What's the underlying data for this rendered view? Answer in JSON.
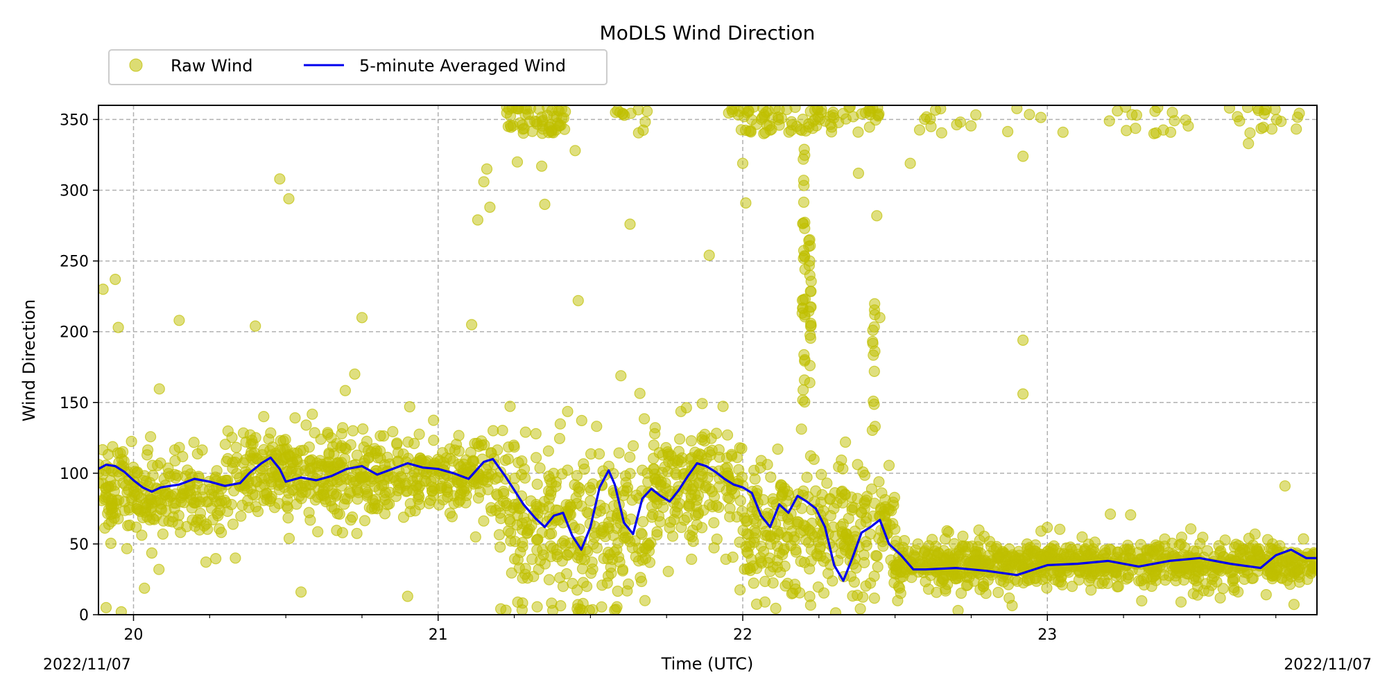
{
  "chart_data": {
    "type": "scatter",
    "title": "MoDLS Wind Direction",
    "xlabel": "Time (UTC)",
    "ylabel": "Wind Direction",
    "xlim": [
      19.885,
      23.885
    ],
    "ylim": [
      0,
      360
    ],
    "x_ticks": [
      20,
      21,
      22,
      23
    ],
    "x_tick_labels": [
      "20",
      "21",
      "22",
      "23"
    ],
    "y_ticks": [
      0,
      50,
      100,
      150,
      200,
      250,
      300,
      350
    ],
    "y_tick_labels": [
      "0",
      "50",
      "100",
      "150",
      "200",
      "250",
      "300",
      "350"
    ],
    "date_left": "2022/11/07",
    "date_right": "2022/11/07",
    "grid": true,
    "legend_position": "top-left-outside",
    "colors": {
      "raw": "#bfbf00",
      "avg": "#0000ee",
      "grid": "#b0b0b0"
    },
    "series": [
      {
        "name": "Raw Wind",
        "kind": "scatter",
        "color": "#bfbf00",
        "distribution": [
          {
            "x0": 19.885,
            "x1": 20.3,
            "median": 85,
            "spread": 28,
            "density": 150
          },
          {
            "x0": 20.3,
            "x1": 20.5,
            "median": 100,
            "spread": 30,
            "density": 160
          },
          {
            "x0": 20.5,
            "x1": 21.2,
            "median": 98,
            "spread": 25,
            "density": 150
          },
          {
            "x0": 21.2,
            "x1": 21.45,
            "median": 70,
            "spread": 45,
            "density": 160
          },
          {
            "x0": 21.45,
            "x1": 21.7,
            "median": 65,
            "spread": 50,
            "density": 160
          },
          {
            "x0": 21.7,
            "x1": 22.0,
            "median": 90,
            "spread": 40,
            "density": 160
          },
          {
            "x0": 22.0,
            "x1": 22.35,
            "median": 60,
            "spread": 40,
            "density": 160
          },
          {
            "x0": 22.35,
            "x1": 22.5,
            "median": 60,
            "spread": 40,
            "density": 150
          },
          {
            "x0": 22.5,
            "x1": 23.885,
            "median": 36,
            "spread": 14,
            "density": 160
          }
        ],
        "outliers": [
          [
            19.9,
            230
          ],
          [
            19.94,
            237
          ],
          [
            19.95,
            203
          ],
          [
            19.91,
            5
          ],
          [
            19.96,
            2
          ],
          [
            20.15,
            208
          ],
          [
            20.4,
            204
          ],
          [
            20.48,
            308
          ],
          [
            20.51,
            294
          ],
          [
            20.55,
            16
          ],
          [
            20.75,
            210
          ],
          [
            20.9,
            13
          ],
          [
            21.11,
            205
          ],
          [
            21.13,
            279
          ],
          [
            21.15,
            306
          ],
          [
            21.16,
            315
          ],
          [
            21.17,
            288
          ],
          [
            21.26,
            320
          ],
          [
            21.34,
            317
          ],
          [
            21.35,
            290
          ],
          [
            21.45,
            328
          ],
          [
            21.46,
            222
          ],
          [
            21.63,
            276
          ],
          [
            21.89,
            254
          ],
          [
            22.0,
            319
          ],
          [
            22.01,
            291
          ],
          [
            22.12,
            346
          ],
          [
            22.2,
            307
          ],
          [
            22.22,
            265
          ],
          [
            22.22,
            250
          ],
          [
            22.38,
            312
          ],
          [
            22.44,
            282
          ],
          [
            22.45,
            210
          ],
          [
            22.55,
            319
          ],
          [
            22.92,
            324
          ],
          [
            22.92,
            194
          ],
          [
            22.92,
            156
          ],
          [
            23.35,
            340
          ],
          [
            23.66,
            333
          ],
          [
            23.78,
            91
          ]
        ],
        "wrap_clusters": [
          {
            "x0": 21.22,
            "x1": 21.42,
            "count": 60
          },
          {
            "x0": 21.58,
            "x1": 21.7,
            "count": 12
          },
          {
            "x0": 21.95,
            "x1": 22.3,
            "count": 70
          },
          {
            "x0": 22.3,
            "x1": 22.45,
            "count": 20
          },
          {
            "x0": 22.55,
            "x1": 22.8,
            "count": 12
          },
          {
            "x0": 22.85,
            "x1": 23.6,
            "count": 22
          },
          {
            "x0": 23.62,
            "x1": 23.83,
            "count": 18
          }
        ],
        "spike_clusters": [
          {
            "x": 22.2,
            "y0": 150,
            "y1": 360,
            "count": 30
          },
          {
            "x": 22.22,
            "y0": 150,
            "y1": 300,
            "count": 18
          },
          {
            "x": 22.43,
            "y0": 120,
            "y1": 220,
            "count": 14
          }
        ]
      },
      {
        "name": "5-minute Averaged Wind",
        "kind": "line",
        "color": "#0000ee",
        "x": [
          19.885,
          19.91,
          19.94,
          19.97,
          20.0,
          20.03,
          20.06,
          20.09,
          20.12,
          20.15,
          20.2,
          20.25,
          20.3,
          20.35,
          20.38,
          20.42,
          20.45,
          20.48,
          20.5,
          20.55,
          20.6,
          20.65,
          20.7,
          20.75,
          20.8,
          20.85,
          20.9,
          20.95,
          21.0,
          21.05,
          21.1,
          21.15,
          21.18,
          21.22,
          21.25,
          21.28,
          21.32,
          21.35,
          21.38,
          21.41,
          21.44,
          21.47,
          21.5,
          21.53,
          21.56,
          21.58,
          21.61,
          21.64,
          21.67,
          21.7,
          21.73,
          21.76,
          21.79,
          21.82,
          21.85,
          21.88,
          21.91,
          21.94,
          21.97,
          22.0,
          22.03,
          22.06,
          22.09,
          22.12,
          22.15,
          22.18,
          22.21,
          22.24,
          22.27,
          22.3,
          22.33,
          22.36,
          22.39,
          22.42,
          22.45,
          22.48,
          22.52,
          22.56,
          22.6,
          22.7,
          22.8,
          22.9,
          23.0,
          23.1,
          23.2,
          23.3,
          23.4,
          23.5,
          23.6,
          23.7,
          23.75,
          23.8,
          23.85,
          23.885
        ],
        "values": [
          103,
          106,
          105,
          101,
          95,
          90,
          87,
          90,
          91,
          92,
          96,
          94,
          91,
          93,
          100,
          107,
          111,
          103,
          94,
          97,
          95,
          98,
          103,
          105,
          99,
          103,
          107,
          104,
          103,
          100,
          96,
          108,
          110,
          98,
          88,
          78,
          68,
          62,
          70,
          72,
          56,
          46,
          62,
          90,
          102,
          92,
          65,
          57,
          82,
          89,
          84,
          80,
          88,
          98,
          107,
          105,
          101,
          96,
          92,
          90,
          86,
          70,
          62,
          78,
          72,
          84,
          80,
          75,
          62,
          35,
          24,
          40,
          58,
          62,
          67,
          50,
          42,
          32,
          32,
          33,
          31,
          28,
          35,
          36,
          38,
          34,
          38,
          40,
          36,
          33,
          42,
          46,
          40,
          40
        ]
      }
    ]
  }
}
